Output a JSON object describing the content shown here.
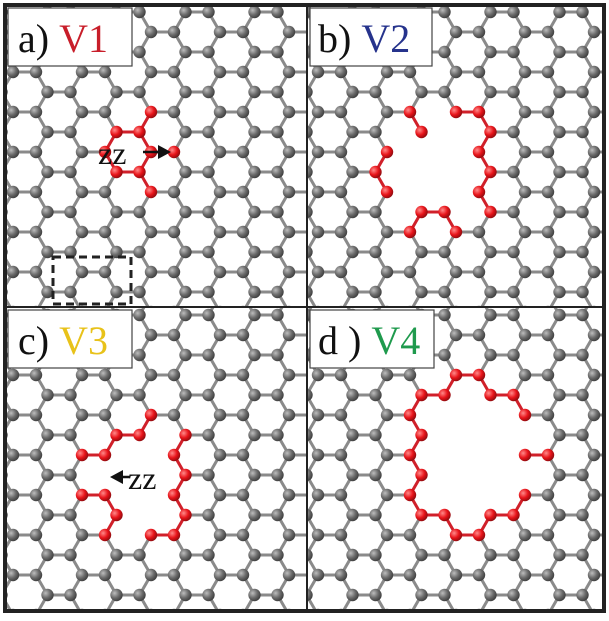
{
  "panels": [
    {
      "prefix": "a)",
      "label": "V1",
      "label_color": "#c81e2a"
    },
    {
      "prefix": "b)",
      "label": "V2",
      "label_color": "#26338c"
    },
    {
      "prefix": "c)",
      "label": "V3",
      "label_color": "#e8c21a"
    },
    {
      "prefix": "d )",
      "label": "V4",
      "label_color": "#1f9a4d"
    }
  ],
  "annotations": {
    "zz_a": "zz",
    "zz_c": "zz"
  },
  "colors": {
    "carbon": "#6b6b6b",
    "defect": "#e8141a",
    "bond": "#8a8a8a",
    "defect_bond": "#d0202a",
    "frame": "#222222"
  }
}
